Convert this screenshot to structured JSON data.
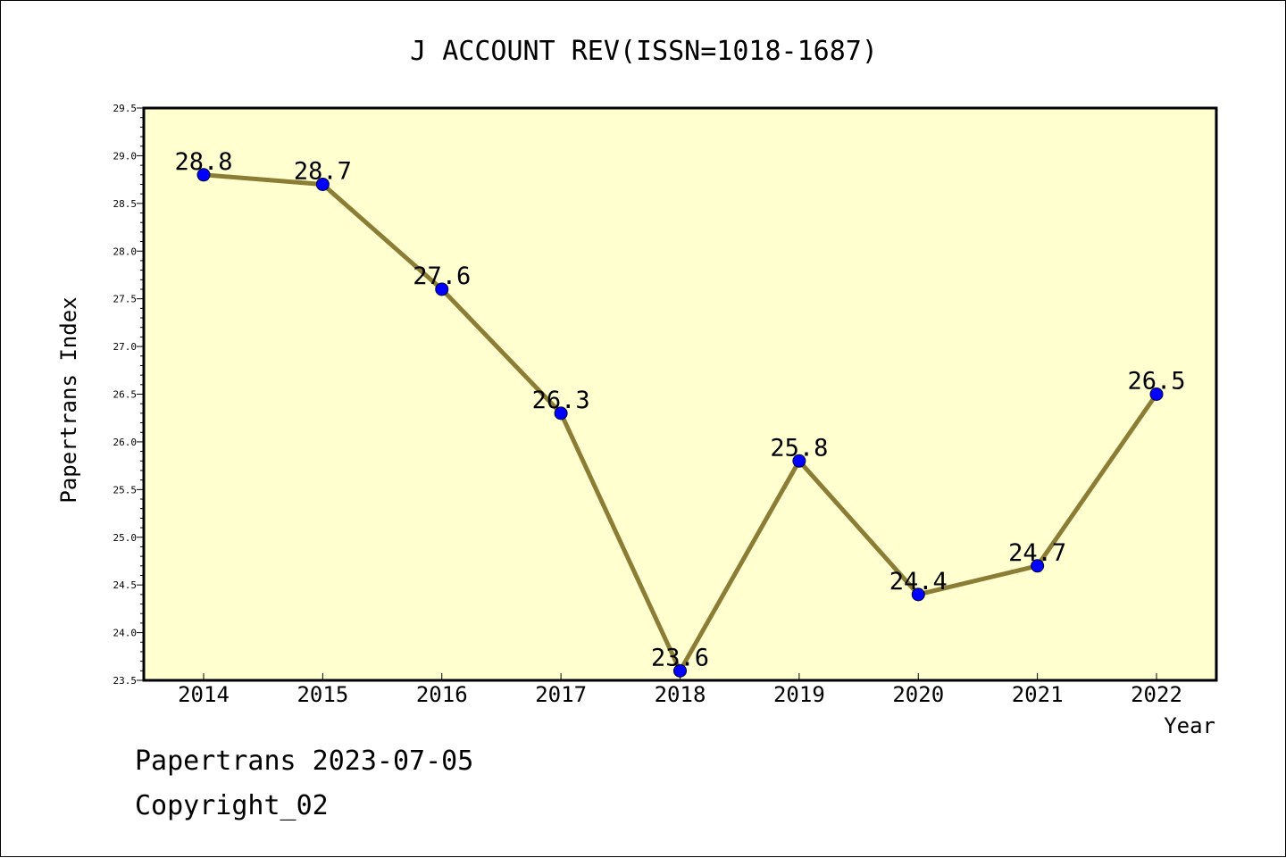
{
  "chart_data": {
    "type": "line",
    "title": "J ACCOUNT REV(ISSN=1018-1687)",
    "xlabel": "Year",
    "ylabel": "Papertrans Index",
    "categories": [
      "2014",
      "2015",
      "2016",
      "2017",
      "2018",
      "2019",
      "2020",
      "2021",
      "2022"
    ],
    "values": [
      28.8,
      28.7,
      27.6,
      26.3,
      23.6,
      25.8,
      24.4,
      24.7,
      26.5
    ],
    "data_labels": [
      "28.8",
      "28.7",
      "27.6",
      "26.3",
      "23.6",
      "25.8",
      "24.4",
      "24.7",
      "26.5"
    ],
    "ylim": [
      23.5,
      29.5
    ],
    "y_ticks": [
      "23.5",
      "24.0",
      "24.5",
      "25.0",
      "25.5",
      "26.0",
      "26.5",
      "27.0",
      "27.5",
      "28.0",
      "28.5",
      "29.0",
      "29.5"
    ],
    "grid": false,
    "colors": {
      "plot_background": "#ffffd0",
      "line": "#8b7d35",
      "marker": "#0000ff"
    }
  },
  "footer": {
    "line1": "Papertrans 2023-07-05",
    "line2": "Copyright_02"
  }
}
